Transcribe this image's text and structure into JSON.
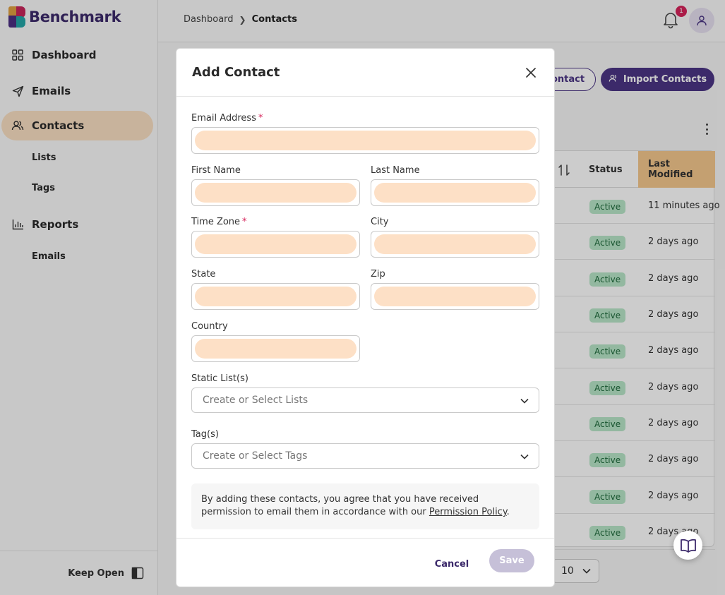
{
  "app": {
    "logo_text": "Benchmark"
  },
  "sidebar": {
    "items": [
      {
        "label": "Dashboard",
        "icon": "dashboard-icon"
      },
      {
        "label": "Emails",
        "icon": "send-icon"
      },
      {
        "label": "Contacts",
        "icon": "contacts-icon",
        "active": true
      },
      {
        "label": "Reports",
        "icon": "bar-chart-icon"
      }
    ],
    "contacts_sub": [
      "Lists",
      "Tags"
    ],
    "reports_sub": [
      "Emails"
    ],
    "keep_open_label": "Keep Open"
  },
  "header": {
    "breadcrumb": [
      "Dashboard",
      "Contacts"
    ],
    "notification_count": "1"
  },
  "page": {
    "add_contact_fragment": "ontact",
    "import_contacts_label": "Import Contacts",
    "table": {
      "headers": {
        "status": "Status",
        "last_modified": "Last Modified"
      },
      "rows": [
        {
          "status": "Active",
          "modified": "11 minutes ago"
        },
        {
          "status": "Active",
          "modified": "2 days ago"
        },
        {
          "status": "Active",
          "modified": "2 days ago"
        },
        {
          "status": "Active",
          "modified": "2 days ago"
        },
        {
          "status": "Active",
          "modified": "2 days ago"
        },
        {
          "status": "Active",
          "modified": "2 days ago"
        },
        {
          "status": "Active",
          "modified": "2 days ago"
        },
        {
          "status": "Active",
          "modified": "2 days ago"
        },
        {
          "status": "Active",
          "modified": "2 days ago"
        },
        {
          "status": "Active",
          "modified": "2 days ago"
        }
      ]
    },
    "page_size": "10"
  },
  "modal": {
    "title": "Add Contact",
    "fields": {
      "email": {
        "label": "Email Address",
        "required": "*",
        "value": ""
      },
      "first_name": {
        "label": "First Name",
        "value": ""
      },
      "last_name": {
        "label": "Last Name",
        "value": ""
      },
      "time_zone": {
        "label": "Time Zone",
        "required": "*",
        "value": ""
      },
      "city": {
        "label": "City",
        "value": ""
      },
      "state": {
        "label": "State",
        "value": ""
      },
      "zip": {
        "label": "Zip",
        "value": ""
      },
      "country": {
        "label": "Country",
        "value": ""
      }
    },
    "static_lists": {
      "label": "Static List(s)",
      "placeholder": "Create or Select Lists"
    },
    "tags": {
      "label": "Tag(s)",
      "placeholder": "Create or Select Tags"
    },
    "consent_text": "By adding these contacts, you agree that you have received permission to email them in accordance with our",
    "consent_link": "Permission Policy",
    "consent_end": ".",
    "cancel_label": "Cancel",
    "save_label": "Save"
  },
  "colors": {
    "brand": "#4b3585",
    "active_nav": "#fbe0c3",
    "field_fill": "#fde0c6",
    "status_active": "#b8e6c8",
    "required": "#d6245a"
  }
}
